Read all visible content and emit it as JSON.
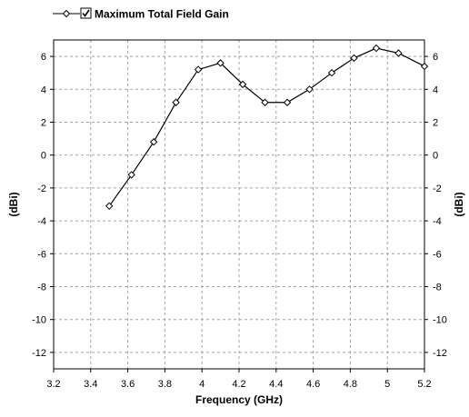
{
  "chart_data": {
    "type": "line",
    "xlabel": "Frequency (GHz)",
    "ylabel": "(dBi)",
    "ylabel_right": "(dBi)",
    "xlim": [
      3.2,
      5.2
    ],
    "ylim": [
      -13,
      7
    ],
    "x_ticks": [
      3.2,
      3.4,
      3.6,
      3.8,
      4.0,
      4.2,
      4.4,
      4.6,
      4.8,
      5.0,
      5.2
    ],
    "x_tick_labels": [
      "3.2",
      "3.4",
      "3.6",
      "3.8",
      "4",
      "4.2",
      "4.4",
      "4.6",
      "4.8",
      "5",
      "5.2"
    ],
    "y_ticks": [
      6,
      4,
      2,
      0,
      -2,
      -4,
      -6,
      -8,
      -10,
      -12
    ],
    "y_tick_labels": [
      "6",
      "4",
      "2",
      "0",
      "-2",
      "-4",
      "-6",
      "-8",
      "-10",
      "-12"
    ],
    "grid": true,
    "legend_placement": "top-left",
    "series": [
      {
        "name": "Maximum Total Field Gain",
        "checked": true,
        "color": "#000000",
        "marker": "diamond",
        "x": [
          3.5,
          3.62,
          3.74,
          3.86,
          3.98,
          4.1,
          4.22,
          4.34,
          4.46,
          4.58,
          4.7,
          4.82,
          4.94,
          5.06,
          5.2
        ],
        "values": [
          -3.1,
          -1.2,
          0.8,
          3.2,
          5.2,
          5.6,
          4.3,
          3.2,
          3.2,
          4.0,
          5.0,
          5.9,
          6.5,
          6.2,
          5.4
        ]
      }
    ]
  },
  "icons": {
    "legend_checkbox": "checkbox-checked-icon",
    "series_marker": "diamond-marker-icon"
  },
  "colors": {
    "line": "#000000",
    "grid": "#a0a0a0",
    "frame": "#000000",
    "background": "#ffffff"
  }
}
